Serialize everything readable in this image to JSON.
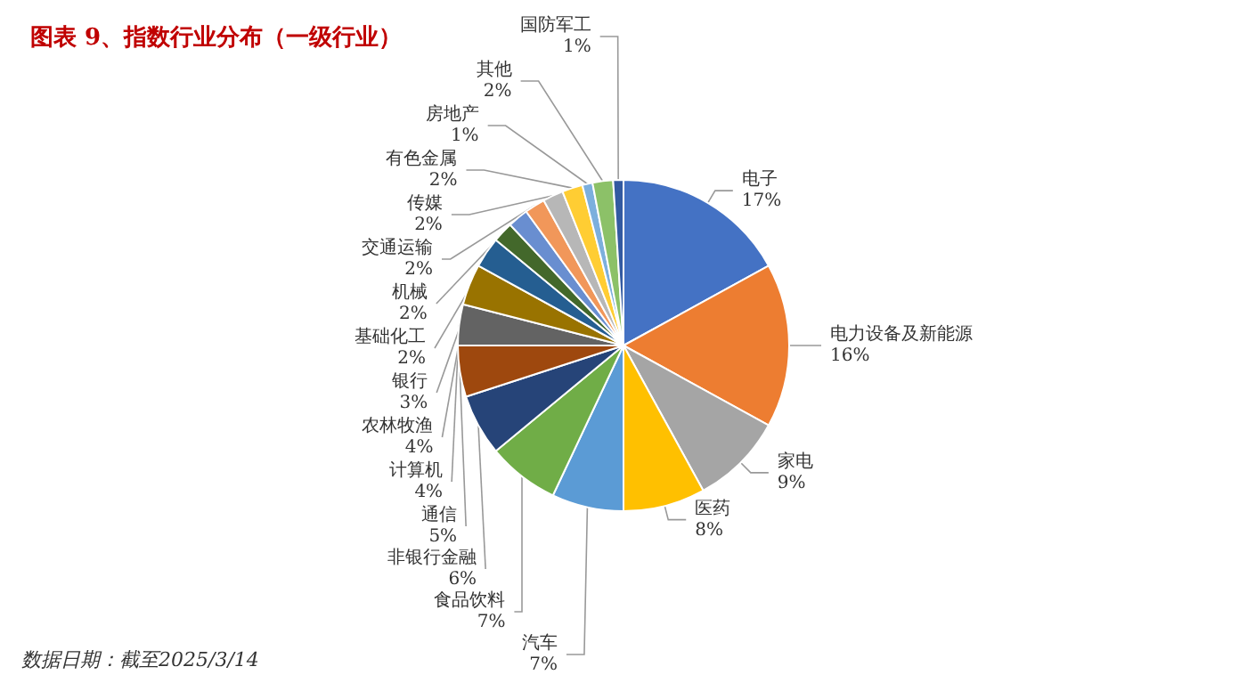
{
  "chart_data": {
    "type": "pie",
    "title": "图表 9、指数行业分布（一级行业）",
    "categories": [
      "电子",
      "电力设备及新能源",
      "家电",
      "医药",
      "汽车",
      "食品饮料",
      "非银行金融",
      "通信",
      "计算机",
      "农林牧渔",
      "银行",
      "基础化工",
      "机械",
      "交通运输",
      "传媒",
      "有色金属",
      "房地产",
      "其他",
      "国防军工"
    ],
    "values": [
      17,
      16,
      9,
      8,
      7,
      7,
      6,
      5,
      4,
      4,
      3,
      2,
      2,
      2,
      2,
      2,
      1,
      2,
      1
    ],
    "value_labels": [
      "17%",
      "16%",
      "9%",
      "8%",
      "7%",
      "7%",
      "6%",
      "5%",
      "4%",
      "4%",
      "3%",
      "2%",
      "2%",
      "2%",
      "2%",
      "2%",
      "1%",
      "2%",
      "1%"
    ],
    "colors": [
      "#4472c4",
      "#ed7d31",
      "#a5a5a5",
      "#ffc000",
      "#5b9bd5",
      "#70ad47",
      "#264478",
      "#9e480e",
      "#636363",
      "#997300",
      "#255e91",
      "#43682b",
      "#698ed0",
      "#f1975a",
      "#b7b7b7",
      "#ffcd33",
      "#7cafdd",
      "#8cc168",
      "#335aa1"
    ],
    "annotations": [
      "数据日期：截至2025/3/14"
    ],
    "legend": false
  }
}
